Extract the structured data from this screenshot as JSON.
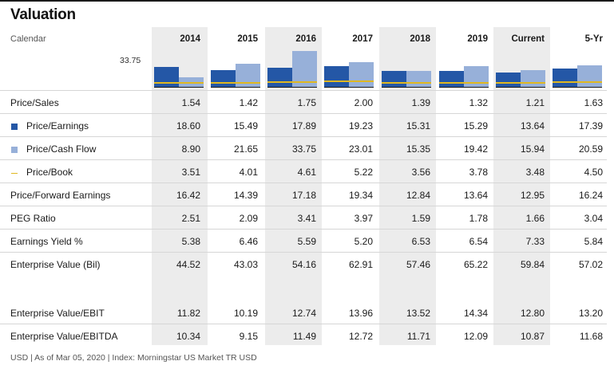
{
  "title": "Valuation",
  "calendar_label": "Calendar",
  "columns": [
    "2014",
    "2015",
    "2016",
    "2017",
    "2018",
    "2019",
    "Current",
    "5-Yr"
  ],
  "chart_max_label": "33.75",
  "rows": [
    {
      "label": "Price/Sales",
      "legend": "",
      "values": [
        "1.54",
        "1.42",
        "1.75",
        "2.00",
        "1.39",
        "1.32",
        "1.21",
        "1.63"
      ]
    },
    {
      "label": "Price/Earnings",
      "legend": "pe",
      "values": [
        "18.60",
        "15.49",
        "17.89",
        "19.23",
        "15.31",
        "15.29",
        "13.64",
        "17.39"
      ]
    },
    {
      "label": "Price/Cash Flow",
      "legend": "pcf",
      "values": [
        "8.90",
        "21.65",
        "33.75",
        "23.01",
        "15.35",
        "19.42",
        "15.94",
        "20.59"
      ]
    },
    {
      "label": "Price/Book",
      "legend": "pb",
      "values": [
        "3.51",
        "4.01",
        "4.61",
        "5.22",
        "3.56",
        "3.78",
        "3.48",
        "4.50"
      ]
    },
    {
      "label": "Price/Forward Earnings",
      "legend": "",
      "values": [
        "16.42",
        "14.39",
        "17.18",
        "19.34",
        "12.84",
        "13.64",
        "12.95",
        "16.24"
      ]
    },
    {
      "label": "PEG Ratio",
      "legend": "",
      "values": [
        "2.51",
        "2.09",
        "3.41",
        "3.97",
        "1.59",
        "1.78",
        "1.66",
        "3.04"
      ]
    },
    {
      "label": "Earnings Yield %",
      "legend": "",
      "values": [
        "5.38",
        "6.46",
        "5.59",
        "5.20",
        "6.53",
        "6.54",
        "7.33",
        "5.84"
      ]
    },
    {
      "label": "Enterprise Value (Bil)",
      "legend": "",
      "values": [
        "44.52",
        "43.03",
        "54.16",
        "62.91",
        "57.46",
        "65.22",
        "59.84",
        "57.02"
      ]
    },
    {
      "label": "Enterprise Value/EBIT",
      "legend": "",
      "values": [
        "11.82",
        "10.19",
        "12.74",
        "13.96",
        "13.52",
        "14.34",
        "12.80",
        "13.20"
      ]
    },
    {
      "label": "Enterprise Value/EBITDA",
      "legend": "",
      "values": [
        "10.34",
        "9.15",
        "11.49",
        "12.72",
        "11.71",
        "12.09",
        "10.87",
        "11.68"
      ]
    }
  ],
  "footer": "USD | As of Mar 05, 2020 | Index: Morningstar US Market TR USD",
  "colors": {
    "price_earnings": "#2457a6",
    "price_cash_flow": "#97b0d9",
    "price_book": "#e0b820",
    "column_shade": "#ececec"
  }
}
